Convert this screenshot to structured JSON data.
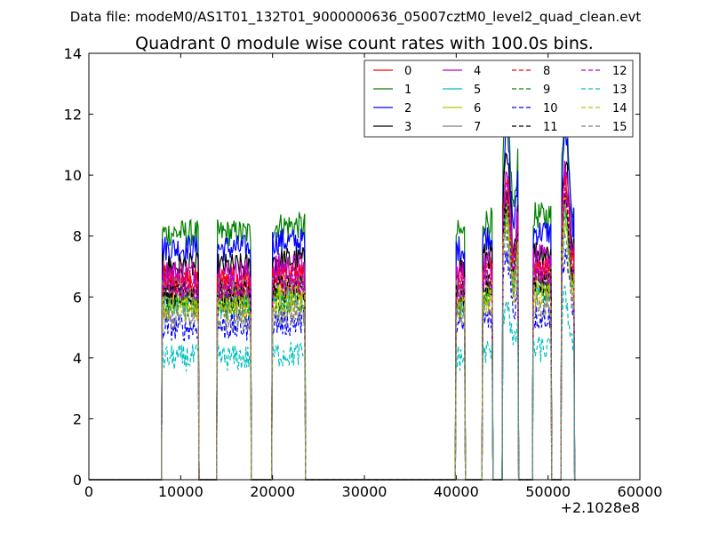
{
  "chart_data": {
    "type": "line",
    "suptitle": "Data file: modeM0/AS1T01_132T01_9000000636_05007cztM0_level2_quad_clean.evt",
    "title": "Quadrant 0 module wise count rates with 100.0s bins.",
    "xlabel": "",
    "ylabel": "",
    "x_offset_label": "+2.1028e8",
    "xlim": [
      0,
      60000
    ],
    "ylim": [
      0,
      14
    ],
    "x_ticks": [
      0,
      10000,
      20000,
      30000,
      40000,
      50000,
      60000
    ],
    "y_ticks": [
      0,
      2,
      4,
      6,
      8,
      10,
      12,
      14
    ],
    "grid": false,
    "legend_position": "top-right",
    "segments": [
      {
        "start": 8000,
        "end": 11900,
        "scale": 1.0
      },
      {
        "start": 14000,
        "end": 17600,
        "scale": 1.0
      },
      {
        "start": 20000,
        "end": 23500,
        "scale": 1.03
      },
      {
        "start": 40000,
        "end": 40900,
        "scale": 1.0
      },
      {
        "start": 42900,
        "end": 43900,
        "scale": 1.05
      },
      {
        "start": 45100,
        "end": 46700,
        "scale": 1.3
      },
      {
        "start": 48400,
        "end": 50300,
        "scale": 1.07
      },
      {
        "start": 51500,
        "end": 52800,
        "scale": 1.3
      }
    ],
    "series": [
      {
        "name": "0",
        "color": "#ff0000",
        "dash": "solid",
        "level": 6.6
      },
      {
        "name": "1",
        "color": "#008000",
        "dash": "solid",
        "level": 8.1
      },
      {
        "name": "2",
        "color": "#0000ff",
        "dash": "solid",
        "level": 7.6
      },
      {
        "name": "3",
        "color": "#000000",
        "dash": "solid",
        "level": 7.0
      },
      {
        "name": "4",
        "color": "#bf00bf",
        "dash": "solid",
        "level": 6.8
      },
      {
        "name": "5",
        "color": "#00bfbf",
        "dash": "solid",
        "level": 5.8
      },
      {
        "name": "6",
        "color": "#bfbf00",
        "dash": "solid",
        "level": 6.0
      },
      {
        "name": "7",
        "color": "#808080",
        "dash": "solid",
        "level": 6.2
      },
      {
        "name": "8",
        "color": "#ff0000",
        "dash": "dashed",
        "level": 6.4
      },
      {
        "name": "9",
        "color": "#008000",
        "dash": "dashed",
        "level": 5.7
      },
      {
        "name": "10",
        "color": "#0000ff",
        "dash": "dashed",
        "level": 5.0
      },
      {
        "name": "11",
        "color": "#000000",
        "dash": "dashed",
        "level": 6.1
      },
      {
        "name": "12",
        "color": "#bf00bf",
        "dash": "dashed",
        "level": 6.3
      },
      {
        "name": "13",
        "color": "#00bfbf",
        "dash": "dashed",
        "level": 4.0
      },
      {
        "name": "14",
        "color": "#bfbf00",
        "dash": "dashed",
        "level": 5.6
      },
      {
        "name": "15",
        "color": "#808080",
        "dash": "dashed",
        "level": 5.3
      }
    ]
  }
}
